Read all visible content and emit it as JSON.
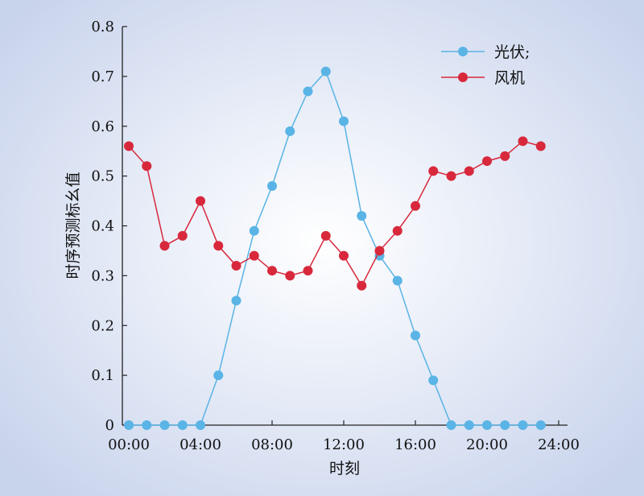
{
  "chart_data": {
    "type": "line",
    "title": "",
    "xlabel": "时刻",
    "ylabel": "时序预测标幺值",
    "ylim": [
      0,
      0.8
    ],
    "y_ticks": [
      "0",
      "0.1",
      "0.2",
      "0.3",
      "0.4",
      "0.5",
      "0.6",
      "0.7",
      "0.8"
    ],
    "x_ticks": [
      "00:00",
      "04:00",
      "08:00",
      "12:00",
      "16:00",
      "20:00",
      "24:00"
    ],
    "x_hours": [
      0,
      1,
      2,
      3,
      4,
      5,
      6,
      7,
      8,
      9,
      10,
      11,
      12,
      13,
      14,
      15,
      16,
      17,
      18,
      19,
      20,
      21,
      22,
      23,
      24
    ],
    "legend_position": "top-right",
    "grid": false,
    "series": [
      {
        "name": "光伏;",
        "color": "#5ab4e5",
        "values": [
          0,
          0,
          0,
          0,
          0,
          0.1,
          0.25,
          0.39,
          0.48,
          0.59,
          0.67,
          0.71,
          0.61,
          0.42,
          0.34,
          0.29,
          0.18,
          0.09,
          0,
          0,
          0,
          0,
          0,
          0
        ]
      },
      {
        "name": "风机",
        "color": "#d8283c",
        "values": [
          0.56,
          0.52,
          0.36,
          0.38,
          0.45,
          0.36,
          0.32,
          0.34,
          0.31,
          0.3,
          0.31,
          0.38,
          0.34,
          0.28,
          0.35,
          0.39,
          0.44,
          0.51,
          0.5,
          0.51,
          0.53,
          0.54,
          0.57,
          0.56
        ]
      }
    ]
  }
}
